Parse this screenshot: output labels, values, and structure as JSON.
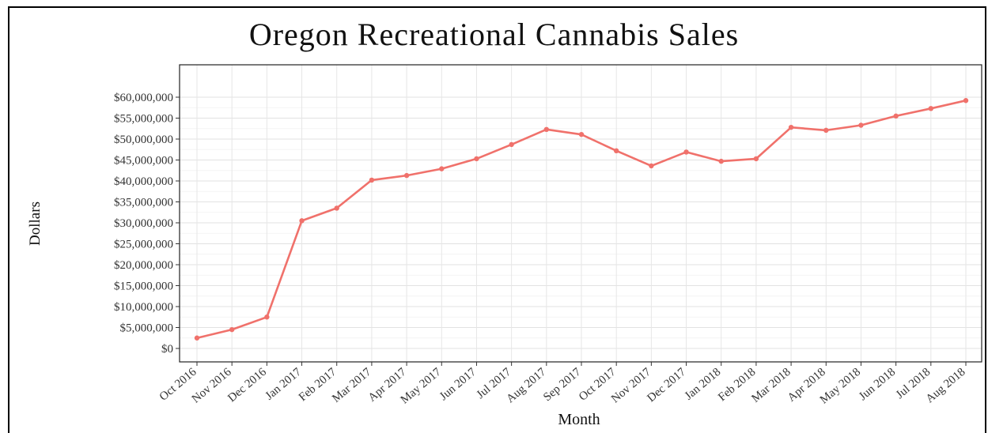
{
  "chart_data": {
    "type": "line",
    "title": "Oregon Recreational Cannabis Sales",
    "xlabel": "Month",
    "ylabel": "Dollars",
    "ylim": [
      0,
      60000000
    ],
    "yticks": [
      0,
      5000000,
      10000000,
      15000000,
      20000000,
      25000000,
      30000000,
      35000000,
      40000000,
      45000000,
      50000000,
      55000000,
      60000000
    ],
    "ytick_labels": [
      "$0",
      "$5,000,000",
      "$10,000,000",
      "$15,000,000",
      "$20,000,000",
      "$25,000,000",
      "$30,000,000",
      "$35,000,000",
      "$40,000,000",
      "$45,000,000",
      "$50,000,000",
      "$55,000,000",
      "$60,000,000"
    ],
    "categories": [
      "Oct 2016",
      "Nov 2016",
      "Dec 2016",
      "Jan 2017",
      "Feb 2017",
      "Mar 2017",
      "Apr 2017",
      "May 2017",
      "Jun 2017",
      "Jul 2017",
      "Aug 2017",
      "Sep 2017",
      "Oct 2017",
      "Nov 2017",
      "Dec 2017",
      "Jan 2018",
      "Feb 2018",
      "Mar 2018",
      "Apr 2018",
      "May 2018",
      "Jun 2018",
      "Jul 2018",
      "Aug 2018"
    ],
    "series": [
      {
        "color": "#f0716b",
        "values": [
          2500000,
          4500000,
          7500000,
          30500000,
          33500000,
          40200000,
          41300000,
          42900000,
          45300000,
          48700000,
          52300000,
          51100000,
          47200000,
          43600000,
          46900000,
          44700000,
          45300000,
          52800000,
          52100000,
          53300000,
          55500000,
          57300000,
          59200000
        ]
      }
    ],
    "grid": true,
    "legend": "none"
  }
}
